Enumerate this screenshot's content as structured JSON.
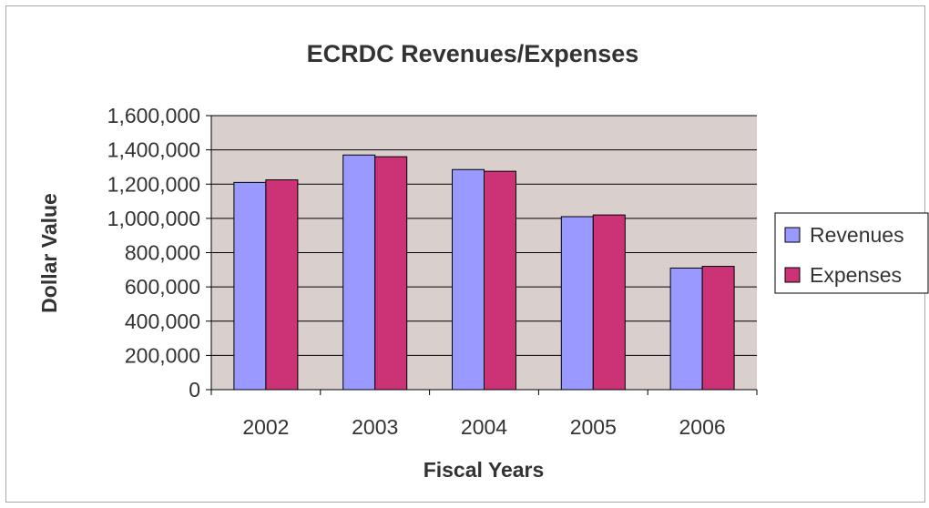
{
  "chart_data": {
    "type": "bar",
    "title": "ECRDC Revenues/Expenses",
    "xlabel": "Fiscal Years",
    "ylabel": "Dollar Value",
    "categories": [
      "2002",
      "2003",
      "2004",
      "2005",
      "2006"
    ],
    "series": [
      {
        "name": "Revenues",
        "values": [
          1210000,
          1370000,
          1285000,
          1010000,
          710000
        ],
        "color": "#9999ff"
      },
      {
        "name": "Expenses",
        "values": [
          1225000,
          1360000,
          1275000,
          1020000,
          720000
        ],
        "color": "#cc3377"
      }
    ],
    "ylim": [
      0,
      1600000
    ],
    "yticks": [
      0,
      200000,
      400000,
      600000,
      800000,
      1000000,
      1200000,
      1400000,
      1600000
    ],
    "ytick_labels": [
      "0",
      "200,000",
      "400,000",
      "600,000",
      "800,000",
      "1,000,000",
      "1,200,000",
      "1,400,000",
      "1,600,000"
    ],
    "plot_background": "#d9d0cd",
    "grid": true,
    "legend_position": "right"
  }
}
